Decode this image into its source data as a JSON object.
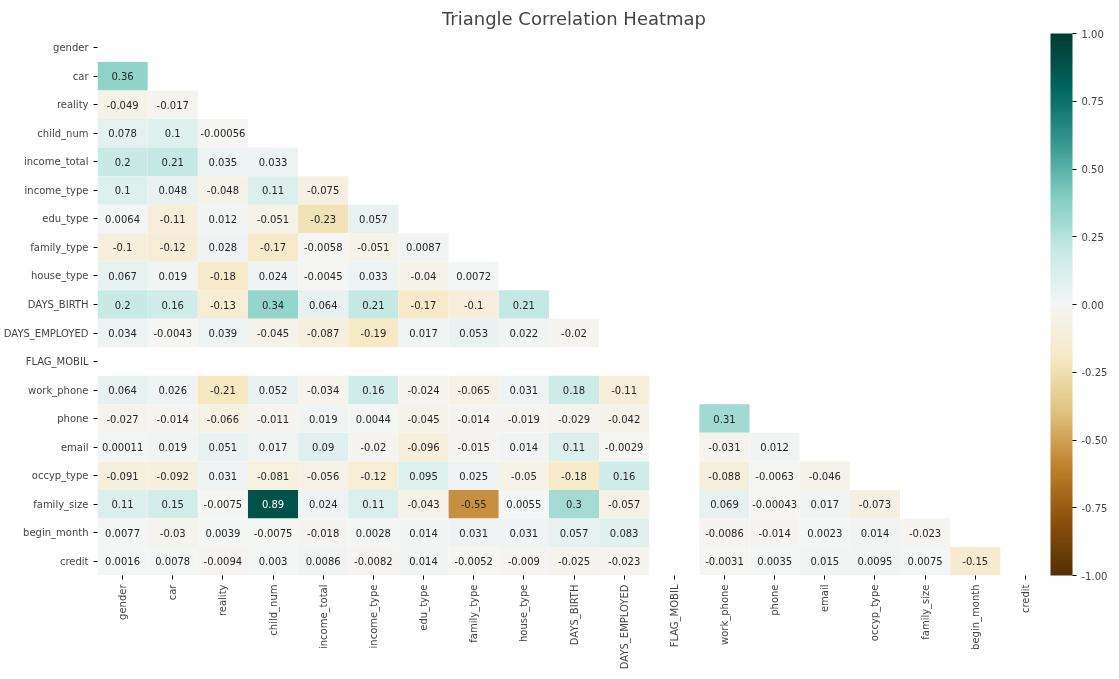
{
  "chart_data": {
    "type": "heatmap",
    "title": "Triangle Correlation Heatmap",
    "categories": [
      "gender",
      "car",
      "reality",
      "child_num",
      "income_total",
      "income_type",
      "edu_type",
      "family_type",
      "house_type",
      "DAYS_BIRTH",
      "DAYS_EMPLOYED",
      "FLAG_MOBIL",
      "work_phone",
      "phone",
      "email",
      "occyp_type",
      "family_size",
      "begin_month",
      "credit"
    ],
    "y_categories": [
      "gender",
      "car",
      "reality",
      "child_num",
      "income_total",
      "income_type",
      "edu_type",
      "family_type",
      "house_type",
      "DAYS_BIRTH",
      "DAYS_EMPLOYED",
      "FLAG_MOBIL",
      "work_phone",
      "phone",
      "email",
      "occyp_type",
      "family_size",
      "begin_month",
      "credit"
    ],
    "cells": [
      [
        null,
        null,
        null,
        null,
        null,
        null,
        null,
        null,
        null,
        null,
        null,
        null,
        null,
        null,
        null,
        null,
        null,
        null,
        null
      ],
      [
        0.36,
        null,
        null,
        null,
        null,
        null,
        null,
        null,
        null,
        null,
        null,
        null,
        null,
        null,
        null,
        null,
        null,
        null,
        null
      ],
      [
        -0.049,
        -0.017,
        null,
        null,
        null,
        null,
        null,
        null,
        null,
        null,
        null,
        null,
        null,
        null,
        null,
        null,
        null,
        null,
        null
      ],
      [
        0.078,
        0.1,
        -0.00056,
        null,
        null,
        null,
        null,
        null,
        null,
        null,
        null,
        null,
        null,
        null,
        null,
        null,
        null,
        null,
        null
      ],
      [
        0.2,
        0.21,
        0.035,
        0.033,
        null,
        null,
        null,
        null,
        null,
        null,
        null,
        null,
        null,
        null,
        null,
        null,
        null,
        null,
        null
      ],
      [
        0.1,
        0.048,
        -0.048,
        0.11,
        -0.075,
        null,
        null,
        null,
        null,
        null,
        null,
        null,
        null,
        null,
        null,
        null,
        null,
        null,
        null
      ],
      [
        0.0064,
        -0.11,
        0.012,
        -0.051,
        -0.23,
        0.057,
        null,
        null,
        null,
        null,
        null,
        null,
        null,
        null,
        null,
        null,
        null,
        null,
        null
      ],
      [
        -0.1,
        -0.12,
        0.028,
        -0.17,
        -0.0058,
        -0.051,
        0.0087,
        null,
        null,
        null,
        null,
        null,
        null,
        null,
        null,
        null,
        null,
        null,
        null
      ],
      [
        0.067,
        0.019,
        -0.18,
        0.024,
        -0.0045,
        0.033,
        -0.04,
        0.0072,
        null,
        null,
        null,
        null,
        null,
        null,
        null,
        null,
        null,
        null,
        null
      ],
      [
        0.2,
        0.16,
        -0.13,
        0.34,
        0.064,
        0.21,
        -0.17,
        -0.1,
        0.21,
        null,
        null,
        null,
        null,
        null,
        null,
        null,
        null,
        null,
        null
      ],
      [
        0.034,
        -0.0043,
        0.039,
        -0.045,
        -0.087,
        -0.19,
        0.017,
        0.053,
        0.022,
        -0.02,
        null,
        null,
        null,
        null,
        null,
        null,
        null,
        null,
        null
      ],
      [
        null,
        null,
        null,
        null,
        null,
        null,
        null,
        null,
        null,
        null,
        null,
        null,
        null,
        null,
        null,
        null,
        null,
        null,
        null
      ],
      [
        0.064,
        0.026,
        -0.21,
        0.052,
        -0.034,
        0.16,
        -0.024,
        -0.065,
        0.031,
        0.18,
        -0.11,
        null,
        null,
        null,
        null,
        null,
        null,
        null,
        null
      ],
      [
        -0.027,
        -0.014,
        -0.066,
        -0.011,
        0.019,
        0.0044,
        -0.045,
        -0.014,
        -0.019,
        -0.029,
        -0.042,
        null,
        0.31,
        null,
        null,
        null,
        null,
        null,
        null
      ],
      [
        0.00011,
        0.019,
        0.051,
        0.017,
        0.09,
        -0.02,
        -0.096,
        -0.015,
        0.014,
        0.11,
        -0.0029,
        null,
        -0.031,
        0.012,
        null,
        null,
        null,
        null,
        null
      ],
      [
        -0.091,
        -0.092,
        0.031,
        -0.081,
        -0.056,
        -0.12,
        0.095,
        0.025,
        -0.05,
        -0.18,
        0.16,
        null,
        -0.088,
        -0.0063,
        -0.046,
        null,
        null,
        null,
        null
      ],
      [
        0.11,
        0.15,
        -0.0075,
        0.89,
        0.024,
        0.11,
        -0.043,
        -0.55,
        0.0055,
        0.3,
        -0.057,
        null,
        0.069,
        -0.00043,
        0.017,
        -0.073,
        null,
        null,
        null
      ],
      [
        0.0077,
        -0.03,
        0.0039,
        -0.0075,
        -0.018,
        0.0028,
        0.014,
        0.031,
        0.031,
        0.057,
        0.083,
        null,
        -0.0086,
        -0.014,
        0.0023,
        0.014,
        -0.023,
        null,
        null
      ],
      [
        0.0016,
        0.0078,
        -0.0094,
        0.003,
        0.0086,
        -0.0082,
        0.014,
        -0.0052,
        -0.009,
        -0.025,
        -0.023,
        null,
        -0.0031,
        0.0035,
        0.015,
        0.0095,
        0.0075,
        -0.15,
        null
      ]
    ],
    "data_labels": true,
    "clim": [
      -1,
      1
    ],
    "cticks": [
      {
        "value": -1,
        "label": "-1.00"
      },
      {
        "value": -0.75,
        "label": "-0.75"
      },
      {
        "value": -0.5,
        "label": "-0.50"
      },
      {
        "value": -0.25,
        "label": "-0.25"
      },
      {
        "value": 0,
        "label": "0.00"
      },
      {
        "value": 0.25,
        "label": "0.25"
      },
      {
        "value": 0.5,
        "label": "0.50"
      },
      {
        "value": 0.75,
        "label": "0.75"
      },
      {
        "value": 1,
        "label": "1.00"
      }
    ]
  }
}
